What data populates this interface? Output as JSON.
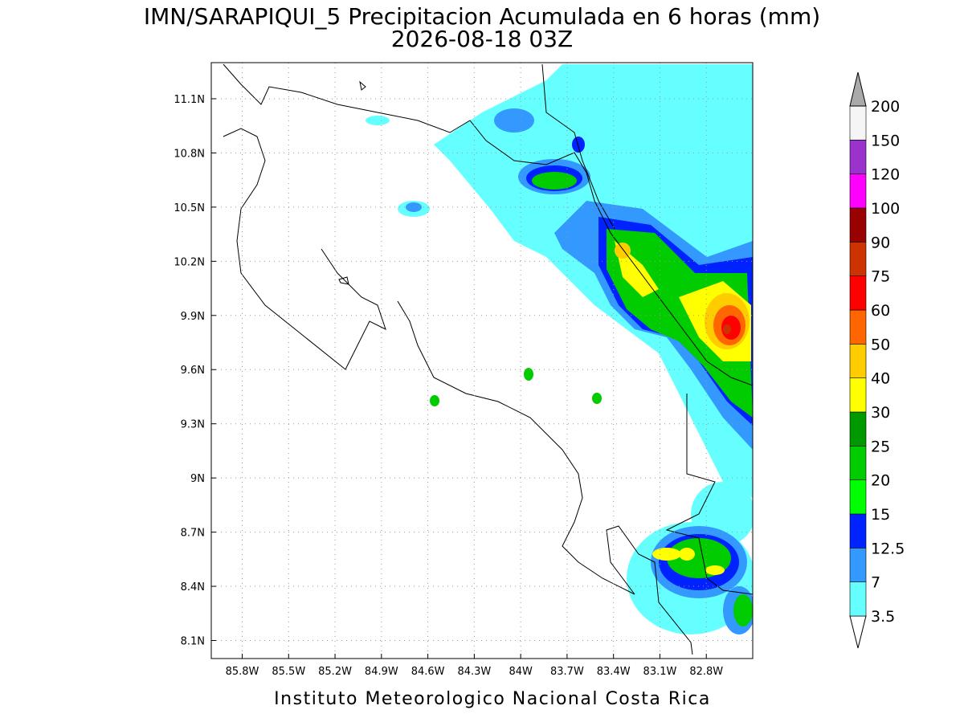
{
  "map": {
    "title": "IMN/SARAPIQUI_5 Precipitacion Acumulada en 6 horas (mm)",
    "subtitle": "2026-08-18 03Z",
    "footer": "Instituto Meteorologico Nacional Costa Rica",
    "lonlim": [
      -86.0,
      -82.5
    ],
    "latlim": [
      8.0,
      11.3
    ],
    "grid": true,
    "lonticks": [
      {
        "value": -85.8,
        "label": "85.8W"
      },
      {
        "value": -85.5,
        "label": "85.5W"
      },
      {
        "value": -85.2,
        "label": "85.2W"
      },
      {
        "value": -84.9,
        "label": "84.9W"
      },
      {
        "value": -84.6,
        "label": "84.6W"
      },
      {
        "value": -84.3,
        "label": "84.3W"
      },
      {
        "value": -84.0,
        "label": "84W"
      },
      {
        "value": -83.7,
        "label": "83.7W"
      },
      {
        "value": -83.4,
        "label": "83.4W"
      },
      {
        "value": -83.1,
        "label": "83.1W"
      },
      {
        "value": -82.8,
        "label": "82.8W"
      }
    ],
    "latticks": [
      {
        "value": 8.1,
        "label": "8.1N"
      },
      {
        "value": 8.4,
        "label": "8.4N"
      },
      {
        "value": 8.7,
        "label": "8.7N"
      },
      {
        "value": 9.0,
        "label": "9N"
      },
      {
        "value": 9.3,
        "label": "9.3N"
      },
      {
        "value": 9.6,
        "label": "9.6N"
      },
      {
        "value": 9.9,
        "label": "9.9N"
      },
      {
        "value": 10.2,
        "label": "10.2N"
      },
      {
        "value": 10.5,
        "label": "10.5N"
      },
      {
        "value": 10.8,
        "label": "10.8N"
      },
      {
        "value": 11.1,
        "label": "11.1N"
      }
    ],
    "colorbar": {
      "levels": [
        3.5,
        7,
        12.5,
        15,
        20,
        25,
        30,
        40,
        50,
        60,
        75,
        90,
        100,
        120,
        150,
        200
      ],
      "colors": [
        "#ffffff",
        "#66ffff",
        "#3399ff",
        "#0022ff",
        "#00ff00",
        "#00cc00",
        "#009900",
        "#ffff00",
        "#ffcc00",
        "#ff6600",
        "#ff0000",
        "#cc3300",
        "#990000",
        "#ff00ff",
        "#9933cc",
        "#f5f5f5",
        "#aaaaaa"
      ]
    }
  }
}
